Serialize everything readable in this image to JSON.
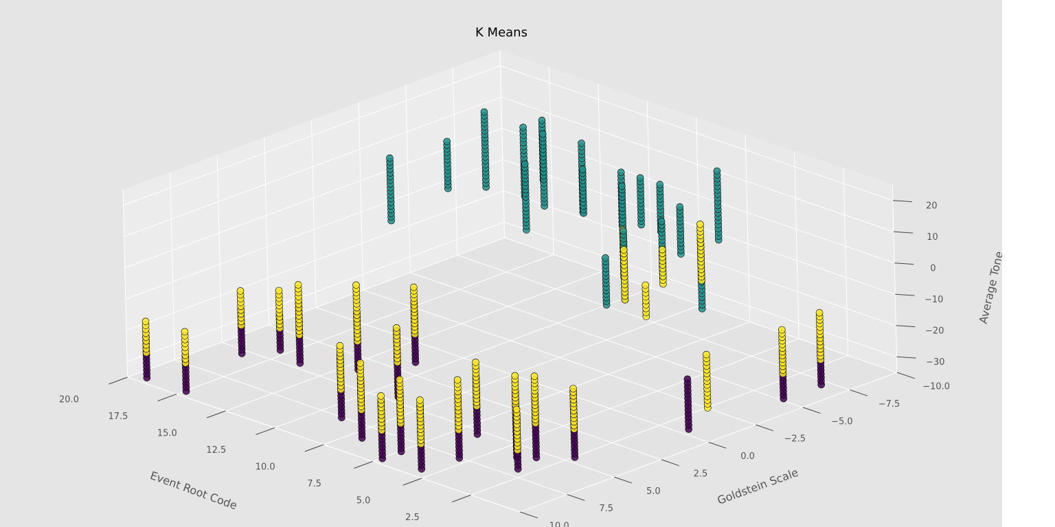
{
  "chart_data": {
    "type": "scatter",
    "projection": "3d",
    "title": "K Means",
    "xlabel": "Event Root Code",
    "ylabel": "Goldstein Scale",
    "zlabel": "Average Tone",
    "xlim": [
      0,
      20
    ],
    "ylim": [
      -10,
      10
    ],
    "zlim": [
      -35,
      25
    ],
    "x_ticks": [
      2.5,
      5.0,
      7.5,
      10.0,
      12.5,
      15.0,
      17.5,
      20.0
    ],
    "x_tick_labels": [
      "2.5",
      "5.0",
      "7.5",
      "10.0",
      "12.5",
      "15.0",
      "17.5",
      "20.0"
    ],
    "y_ticks": [
      10.0,
      7.5,
      5.0,
      2.5,
      0.0,
      -2.5,
      -5.0,
      -7.5,
      -10.0
    ],
    "y_tick_labels": [
      "10.0",
      "7.5",
      "5.0",
      "2.5",
      "0.0",
      "−2.5",
      "−5.0",
      "−7.5",
      "−10.0"
    ],
    "z_ticks": [
      -30,
      -20,
      -10,
      0,
      10,
      20
    ],
    "z_tick_labels": [
      "−30",
      "−20",
      "−10",
      "0",
      "10",
      "20"
    ],
    "grid": true,
    "colors": {
      "cluster_0": "#440154",
      "cluster_1": "#21918c",
      "cluster_2": "#fde725",
      "marker_edge": "#000000",
      "figure_bg": "#e5e5e5",
      "grid": "#ffffff",
      "text": "#555555"
    },
    "clusters": [
      {
        "cluster": 0,
        "color": "#440154",
        "columns": [
          [
            19,
            10,
            -33,
            -20
          ],
          [
            17,
            10,
            -33,
            -22
          ],
          [
            18,
            6,
            -32,
            -18
          ],
          [
            17,
            5,
            -31,
            -20
          ],
          [
            16,
            5,
            -33,
            -14
          ],
          [
            14,
            4,
            -33,
            -15
          ],
          [
            11,
            8,
            -33,
            -13
          ],
          [
            11,
            5,
            -33,
            -12
          ],
          [
            13,
            2,
            -33,
            -14
          ],
          [
            9,
            9,
            -33,
            -14
          ],
          [
            7,
            10,
            -33,
            -15
          ],
          [
            5,
            10,
            -32,
            -12
          ],
          [
            7,
            9,
            -33,
            -14
          ],
          [
            5,
            8,
            -33,
            -13
          ],
          [
            6,
            6,
            -32,
            -14
          ],
          [
            4,
            6,
            -35,
            -14
          ],
          [
            3,
            6,
            -33,
            -13
          ],
          [
            2,
            5,
            -33,
            -12
          ],
          [
            1,
            0,
            -33,
            -17
          ],
          [
            2,
            8,
            -30,
            -13
          ],
          [
            0,
            -4,
            -30,
            -15
          ],
          [
            0,
            -6,
            -30,
            -15
          ]
        ]
      },
      {
        "cluster": 1,
        "color": "#21918c",
        "columns": [
          [
            17,
            -1,
            -3,
            17
          ],
          [
            16,
            -5,
            1,
            25
          ],
          [
            15,
            -6,
            -2,
            20
          ],
          [
            15,
            -7,
            1,
            20
          ],
          [
            16,
            -3,
            5,
            20
          ],
          [
            14,
            -6,
            -3,
            20
          ],
          [
            13,
            -7,
            -5,
            17
          ],
          [
            12,
            -6,
            -1,
            13
          ],
          [
            11,
            -7,
            -5,
            12
          ],
          [
            11,
            -8,
            -7,
            8
          ],
          [
            10,
            -8,
            -7,
            8
          ],
          [
            9,
            -8,
            -12,
            3
          ],
          [
            10,
            -6,
            -9,
            12
          ],
          [
            9,
            -5,
            -20,
            2
          ],
          [
            8,
            -3,
            -15,
            0
          ],
          [
            9,
            -10,
            -12,
            10
          ],
          [
            8,
            -6,
            -13,
            5
          ],
          [
            13,
            -4,
            -4,
            17
          ],
          [
            7,
            -7,
            -23,
            -1
          ]
        ]
      },
      {
        "cluster": 2,
        "color": "#fde725",
        "columns": [
          [
            19,
            10,
            -25,
            -15
          ],
          [
            17,
            10,
            -24,
            -14
          ],
          [
            18,
            6,
            -23,
            -12
          ],
          [
            17,
            5,
            -24,
            -12
          ],
          [
            16,
            5,
            -24,
            -8
          ],
          [
            14,
            4,
            -24,
            -6
          ],
          [
            11,
            8,
            -24,
            -10
          ],
          [
            11,
            5,
            -22,
            -11
          ],
          [
            13,
            2,
            -24,
            -9
          ],
          [
            9,
            9,
            -24,
            -9
          ],
          [
            7,
            10,
            -24,
            -13
          ],
          [
            5,
            8,
            -24,
            -8
          ],
          [
            5,
            10,
            -24,
            -10
          ],
          [
            7,
            9,
            -24,
            -10
          ],
          [
            6,
            6,
            -23,
            -9
          ],
          [
            4,
            6,
            -23,
            -9
          ],
          [
            3,
            6,
            -22,
            -7
          ],
          [
            2,
            5,
            -24,
            -11
          ],
          [
            2,
            8,
            -24,
            -11
          ],
          [
            0,
            0,
            -24,
            -7
          ],
          [
            0,
            -4,
            -22,
            -8
          ],
          [
            0,
            -6,
            -22,
            -7
          ],
          [
            10,
            -6,
            -17,
            -2
          ],
          [
            9,
            -5,
            -20,
            -4
          ],
          [
            8,
            -6,
            -15,
            -4
          ],
          [
            7,
            -7,
            -14,
            4
          ],
          [
            5,
            -2,
            -10,
            0
          ]
        ]
      }
    ]
  }
}
